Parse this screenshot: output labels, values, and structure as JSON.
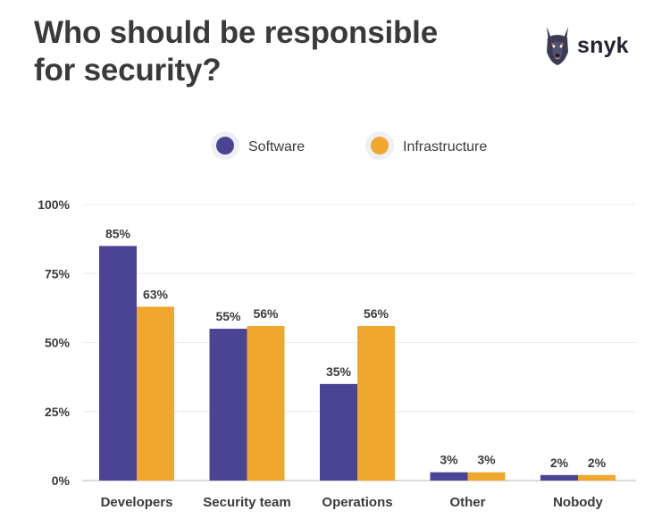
{
  "page": {
    "title_lines": [
      "Who should be responsible",
      "for security?"
    ],
    "logo_text": "snyk",
    "logo_icon": "doberman-head-icon"
  },
  "chart_data": {
    "type": "bar",
    "title": "Who should be responsible for security?",
    "xlabel": "",
    "ylabel": "",
    "categories": [
      "Developers",
      "Security team",
      "Operations",
      "Other",
      "Nobody"
    ],
    "series": [
      {
        "name": "Software",
        "values": [
          85,
          55,
          35,
          3,
          2
        ],
        "color": "#4b4495"
      },
      {
        "name": "Infrastructure",
        "values": [
          63,
          56,
          56,
          3,
          2
        ],
        "color": "#f0a72d"
      }
    ],
    "value_suffix": "%",
    "ylim": [
      0,
      100
    ],
    "yticks": [
      0,
      25,
      50,
      75,
      100
    ],
    "ytick_labels": [
      "0%",
      "25%",
      "50%",
      "75%",
      "100%"
    ],
    "grid": true,
    "legend_position": "top-center"
  }
}
